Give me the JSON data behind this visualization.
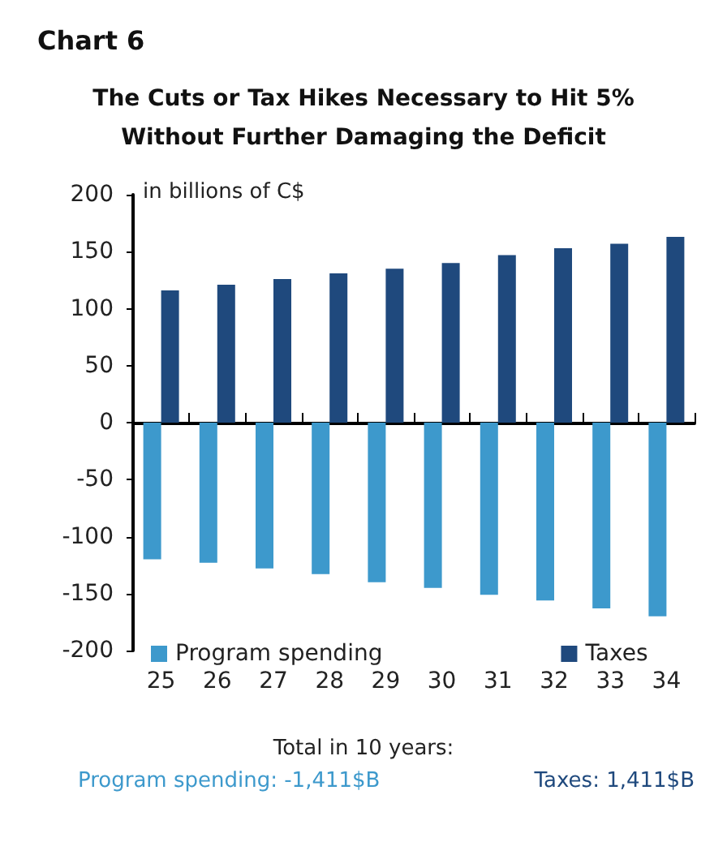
{
  "chart_data": {
    "type": "bar",
    "title": "Chart 6",
    "subtitle": "The Cuts or Tax Hikes Necessary to Hit 5%\nWithout Further Damaging the Deficit",
    "ylabel": "in billions of C$",
    "categories": [
      "25",
      "26",
      "27",
      "28",
      "29",
      "30",
      "31",
      "32",
      "33",
      "34"
    ],
    "series": [
      {
        "name": "Program spending",
        "color": "#3d99cc",
        "values": [
          -120,
          -123,
          -128,
          -133,
          -140,
          -145,
          -151,
          -156,
          -163,
          -170
        ]
      },
      {
        "name": "Taxes",
        "color": "#1f497d",
        "values": [
          116,
          121,
          126,
          131,
          135,
          140,
          147,
          153,
          157,
          163
        ]
      }
    ],
    "ylim": [
      -200,
      200
    ],
    "yticks": [
      -200,
      -150,
      -100,
      -50,
      0,
      50,
      100,
      150,
      200
    ],
    "legend": "bottom",
    "annotations": [
      "Total in 10 years:",
      "Program spending: -1,411$B",
      "Taxes: 1,411$B"
    ]
  }
}
